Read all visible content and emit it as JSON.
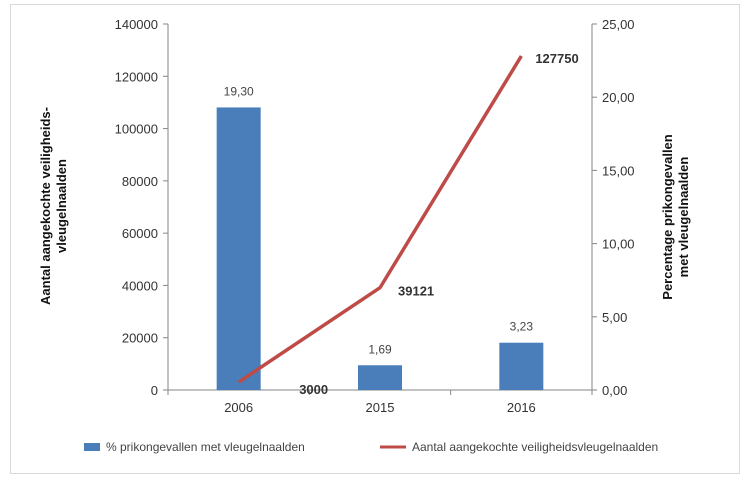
{
  "chart_data": {
    "type": "bar",
    "categories": [
      "2006",
      "2015",
      "2016"
    ],
    "series": [
      {
        "name": "% prikongevallen met vleugelnaalden",
        "type": "bar",
        "axis": "right",
        "values": [
          19.3,
          1.69,
          3.23
        ],
        "labels": [
          "19,30",
          "1,69",
          "3,23"
        ],
        "color": "#4a7ebb"
      },
      {
        "name": "Aantal aangekochte veiligheidsvleugelnaalden",
        "type": "line",
        "axis": "left",
        "values": [
          3000,
          39121,
          127750
        ],
        "labels": [
          "3000",
          "39121",
          "127750"
        ],
        "color": "#be4b48"
      }
    ],
    "y_left": {
      "label_lines": [
        "Aantal aangekochte veiligheids-",
        "vleugelnaalden"
      ],
      "range": [
        0,
        140000
      ],
      "ticks": [
        "0",
        "20000",
        "40000",
        "60000",
        "80000",
        "100000",
        "120000",
        "140000"
      ]
    },
    "y_right": {
      "label_lines": [
        "Percentage prikongevallen",
        "met vleugelnaalden"
      ],
      "range": [
        0,
        25
      ],
      "ticks": [
        "0,00",
        "5,00",
        "10,00",
        "15,00",
        "20,00",
        "25,00"
      ]
    },
    "grid": false,
    "legend_position": "bottom"
  }
}
